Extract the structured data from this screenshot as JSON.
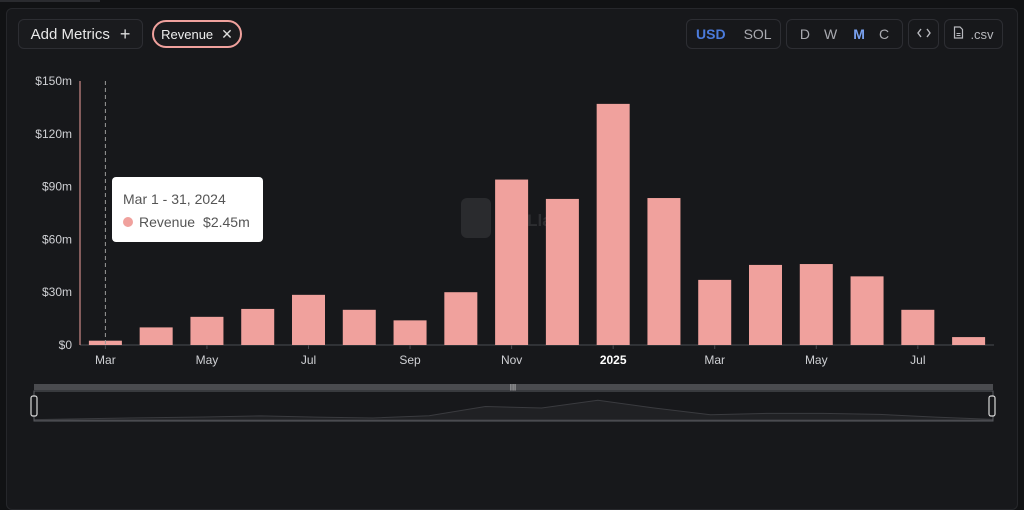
{
  "toolbar": {
    "add_metrics_label": "Add Metrics",
    "add_metrics_icon": "plus-icon",
    "chip_label": "Revenue",
    "chip_icon": "close-icon",
    "currency": [
      "USD",
      "SOL"
    ],
    "currency_selected": "USD",
    "intervals": [
      "D",
      "W",
      "M",
      "C"
    ],
    "interval_selected": "M",
    "embed_icon": "code-icon",
    "csv_label": ".csv",
    "csv_icon": "file-icon"
  },
  "watermark": "DefiLlama",
  "tooltip": {
    "title": "Mar 1 - 31, 2024",
    "series": "Revenue",
    "value": "$2.45m"
  },
  "colors": {
    "bar": "#f0a19d",
    "background": "#17181b",
    "active": "#4b7bdc"
  },
  "chart_data": {
    "type": "bar",
    "series": [
      {
        "name": "Revenue",
        "unit": "$m",
        "values": [
          2.45,
          10,
          16,
          20.5,
          28.5,
          20,
          14,
          30,
          94,
          83,
          137,
          83.5,
          37,
          45.5,
          46,
          39,
          20,
          4.5
        ]
      }
    ],
    "categories": [
      "2024-03",
      "2024-04",
      "2024-05",
      "2024-06",
      "2024-07",
      "2024-08",
      "2024-09",
      "2024-10",
      "2024-11",
      "2024-12",
      "2025-01",
      "2025-02",
      "2025-03",
      "2025-04",
      "2025-05",
      "2025-06",
      "2025-07",
      "2025-08"
    ],
    "x_tick_labels": [
      "Mar",
      "May",
      "Jul",
      "Sep",
      "Nov",
      "2025",
      "Mar",
      "May",
      "Jul"
    ],
    "x_tick_categories": [
      "2024-03",
      "2024-05",
      "2024-07",
      "2024-09",
      "2024-11",
      "2025-01",
      "2025-03",
      "2025-05",
      "2025-07"
    ],
    "bold_tick": "2025",
    "y_tick_labels": [
      "$0",
      "$30m",
      "$60m",
      "$90m",
      "$120m",
      "$150m"
    ],
    "y_tick_values": [
      0,
      30,
      60,
      90,
      120,
      150
    ],
    "ylim": [
      0,
      150
    ],
    "highlighted_category": "2024-03",
    "grid": false
  }
}
